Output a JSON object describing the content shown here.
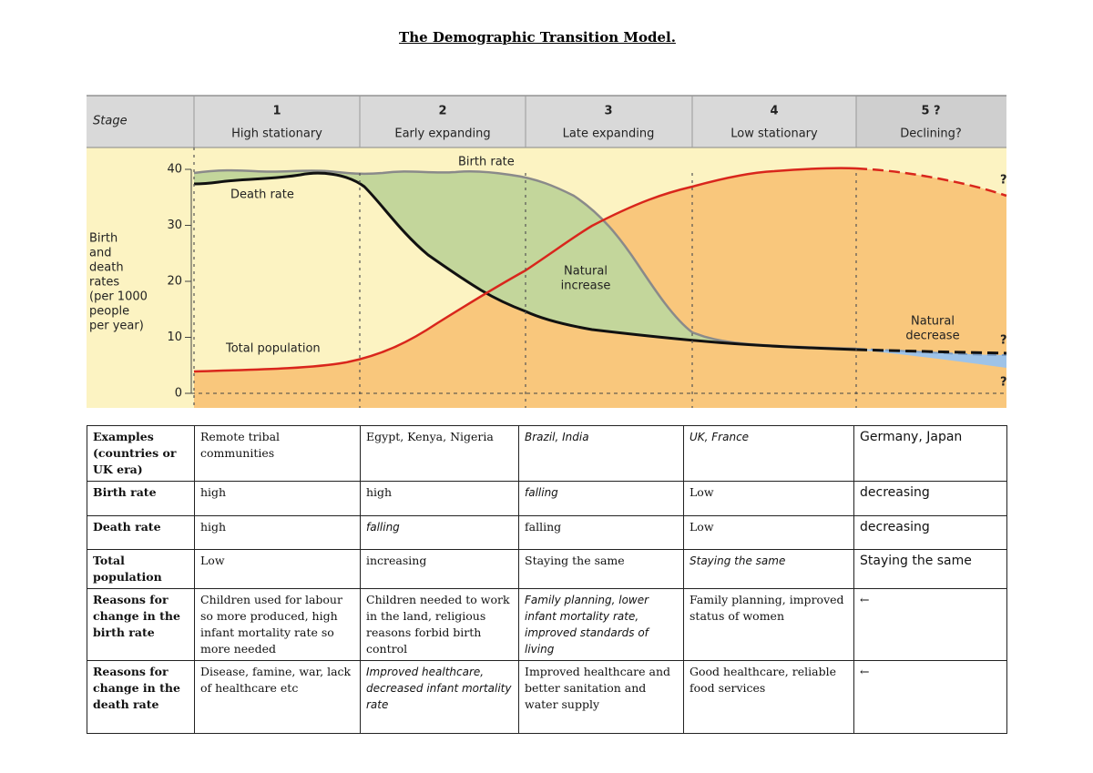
{
  "title": "The Demographic Transition Model.",
  "figure": {
    "stage_label": "Stage",
    "stages": [
      {
        "number": "1",
        "name": "High stationary"
      },
      {
        "number": "2",
        "name": "Early expanding"
      },
      {
        "number": "3",
        "name": "Late expanding"
      },
      {
        "number": "4",
        "name": "Low stationary"
      },
      {
        "number": "5 ?",
        "name": "Declining?"
      }
    ],
    "y_axis_label": [
      "Birth",
      "and",
      "death",
      "rates",
      "(per 1000",
      "people",
      "per year)"
    ],
    "yticks": [
      0,
      10,
      20,
      30,
      40
    ],
    "birth_rate_label": "Birth rate",
    "death_rate_label": "Death rate",
    "total_population_label": "Total population",
    "natural_increase_label": [
      "Natural",
      "increase"
    ],
    "natural_decrease_label": [
      "Natural",
      "decrease"
    ],
    "question_marks": [
      "?",
      "?",
      "?"
    ]
  },
  "table": {
    "rows": [
      [
        "Examples (countries or UK era)",
        "Remote tribal communities",
        "Egypt, Kenya, Nigeria",
        "Brazil, India",
        "UK, France",
        "Germany, Japan"
      ],
      [
        "Birth rate",
        "high",
        "high",
        "falling",
        "Low",
        "decreasing"
      ],
      [
        "Death rate",
        "high",
        "falling",
        "falling",
        "Low",
        "decreasing"
      ],
      [
        "Total population",
        "Low",
        "increasing",
        "Staying the same",
        "Staying the same",
        "Staying the same"
      ],
      [
        "Reasons for change in the birth rate",
        "Children used for labour so more produced, high infant mortality rate so more needed",
        "Children needed to work in the land, religious reasons forbid birth control",
        "Family planning, lower infant mortality rate, improved standards of living",
        "Family planning, improved status of women",
        "←"
      ],
      [
        "Reasons for change in the death rate",
        "Disease, famine, war, lack of healthcare etc",
        "Improved healthcare, decreased infant mortality rate",
        "Improved healthcare and better sanitation and water supply",
        "Good healthcare, reliable food services",
        "←"
      ]
    ]
  }
}
